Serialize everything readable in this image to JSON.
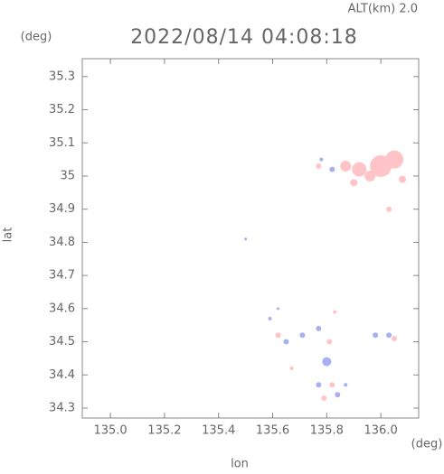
{
  "chart_data": {
    "type": "scatter",
    "title": "2022/08/14 04:08:18",
    "subtitle": "ALT(km) 2.0",
    "y_unit": "(deg)",
    "x_unit": "(deg)",
    "x_label": "lon",
    "y_label": "lat",
    "xlim": [
      134.896,
      136.14
    ],
    "ylim": [
      34.27,
      35.354
    ],
    "xticks": [
      {
        "value": 135,
        "label": "135.0"
      },
      135.2,
      135.4,
      135.6,
      135.8,
      {
        "value": 136,
        "label": "136.0"
      }
    ],
    "yticks": [
      34.3,
      34.4,
      34.5,
      34.6,
      34.7,
      34.8,
      34.9,
      35,
      35.1,
      35.2,
      35.3
    ],
    "series": [
      {
        "color": "#ffc4c8",
        "x": [
          136.0,
          136.05,
          135.92,
          135.87,
          135.96,
          136.08,
          136.03,
          135.9,
          135.77,
          135.83,
          135.62,
          135.81,
          135.82,
          136.05,
          135.67,
          135.79
        ],
        "values": [
          35.03,
          35.05,
          35.02,
          35.03,
          35.0,
          34.99,
          34.9,
          34.98,
          35.03,
          34.59,
          34.52,
          34.5,
          34.37,
          34.51,
          34.42,
          34.33
        ],
        "sizes": [
          12,
          10,
          8,
          6,
          6,
          4,
          3,
          4,
          3,
          2,
          3,
          3,
          3,
          3,
          2,
          3
        ]
      },
      {
        "color": "#a8b0f0",
        "x": [
          135.78,
          135.82,
          135.5,
          135.59,
          135.65,
          135.71,
          135.77,
          135.8,
          135.77,
          135.84,
          135.87,
          135.98,
          136.03,
          135.62
        ],
        "values": [
          35.05,
          35.02,
          34.81,
          34.57,
          34.5,
          34.52,
          34.54,
          34.44,
          34.37,
          34.34,
          34.37,
          34.52,
          34.52,
          34.6
        ],
        "sizes": [
          2,
          3,
          1.5,
          2,
          3,
          3,
          3,
          5,
          3,
          3,
          2,
          3,
          3,
          1.5
        ]
      }
    ]
  }
}
